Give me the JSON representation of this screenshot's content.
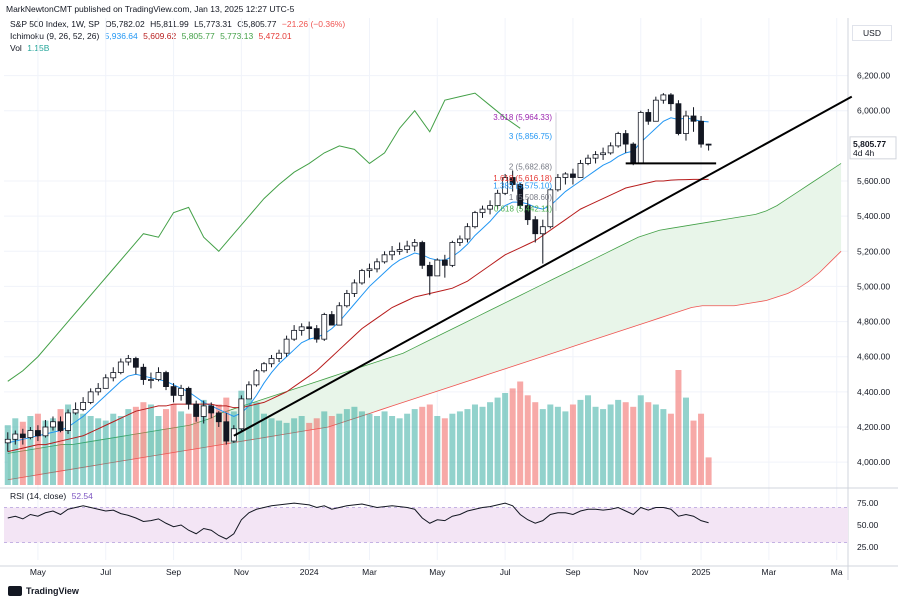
{
  "header": {
    "publisher": "MarkNewtonCMT published on TradingView.com, Jan 13, 2025 12:27 UTC-5",
    "symbol": "S&P 500 Index, 1W, SP",
    "open": "O5,782.02",
    "high": "H5,811.99",
    "low": "L5,773.31",
    "close": "C5,805.77",
    "change": "−21.26 (−0.36%)",
    "ichimoku_label": "Ichimoku (9, 26, 52, 26)",
    "ichimoku_values": [
      "5,936.64",
      "5,609.62",
      "5,805.77",
      "5,773.13",
      "5,472.01"
    ],
    "vol_label": "Vol",
    "vol_value": "1.15B",
    "rsi_label": "RSI (14, close)",
    "rsi_value": "52.54"
  },
  "currency": "USD",
  "price_badge": {
    "value": "5,805.77",
    "timer": "4d 4h"
  },
  "colors": {
    "up": "#26a69a",
    "down": "#ef5350",
    "conversion": "#2196f3",
    "base": "#b71c1c",
    "lagging": "#43a047",
    "cloud": "#e8f5e9",
    "rsi_bg": "#f3e5f5",
    "rsi_line": "#131722",
    "fib_purple": "#9c27b0",
    "fib_blue": "#2196f3",
    "fib_gray": "#787b86",
    "fib_red": "#e53935",
    "fib_green": "#4caf50"
  },
  "footer": {
    "brand": "TradingView"
  },
  "chart_data": {
    "type": "candlestick",
    "price_ticks": [
      4000,
      4200,
      4400,
      4600,
      4800,
      5000,
      5200,
      5400,
      5600,
      6000,
      6200
    ],
    "price_tick_labels": [
      "4,000.00",
      "4,200.00",
      "4,400.00",
      "4,600.00",
      "4,800.00",
      "5,000.00",
      "5,200.00",
      "5,400.00",
      "5,600.00",
      "6,000.00",
      "6,200.00"
    ],
    "ylim": [
      3870,
      6300
    ],
    "rsi_ticks": [
      25,
      50,
      75
    ],
    "rsi_tick_labels": [
      "25.00",
      "50.00",
      "75.00"
    ],
    "rsi_levels": [
      30,
      70
    ],
    "x_labels": [
      "May",
      "Jul",
      "Sep",
      "Nov",
      "2024",
      "Mar",
      "May",
      "Jul",
      "Sep",
      "Nov",
      "2025",
      "Mar",
      "Ma"
    ],
    "x_label_weeks": [
      4,
      13,
      22,
      31,
      40,
      48,
      57,
      66,
      75,
      84,
      92,
      101,
      110
    ],
    "total_weeks": 112,
    "closes": [
      4130,
      4160,
      4140,
      4180,
      4150,
      4200,
      4230,
      4180,
      4280,
      4300,
      4340,
      4400,
      4420,
      4480,
      4510,
      4570,
      4590,
      4540,
      4470,
      4470,
      4510,
      4430,
      4380,
      4420,
      4330,
      4260,
      4320,
      4280,
      4230,
      4120,
      4190,
      4360,
      4440,
      4520,
      4560,
      4590,
      4620,
      4700,
      4750,
      4770,
      4760,
      4700,
      4840,
      4780,
      4890,
      4960,
      5020,
      5090,
      5100,
      5140,
      5180,
      5200,
      5210,
      5230,
      5250,
      5120,
      5060,
      5150,
      5120,
      5250,
      5270,
      5340,
      5420,
      5440,
      5460,
      5530,
      5620,
      5580,
      5460,
      5380,
      5300,
      5340,
      5550,
      5620,
      5640,
      5620,
      5700,
      5730,
      5750,
      5760,
      5800,
      5870,
      5810,
      5700,
      5990,
      5940,
      6060,
      6090,
      6040,
      5870,
      5970,
      5940,
      5810,
      5805.77
    ],
    "highs": [
      4170,
      4180,
      4190,
      4200,
      4210,
      4240,
      4260,
      4260,
      4300,
      4340,
      4370,
      4420,
      4450,
      4500,
      4540,
      4590,
      4610,
      4600,
      4560,
      4510,
      4540,
      4520,
      4450,
      4440,
      4430,
      4350,
      4350,
      4340,
      4290,
      4280,
      4210,
      4380,
      4460,
      4530,
      4570,
      4610,
      4640,
      4720,
      4780,
      4790,
      4800,
      4780,
      4850,
      4860,
      4910,
      4980,
      5040,
      5100,
      5130,
      5160,
      5200,
      5230,
      5250,
      5260,
      5270,
      5260,
      5140,
      5160,
      5180,
      5260,
      5290,
      5360,
      5430,
      5460,
      5490,
      5550,
      5640,
      5660,
      5590,
      5500,
      5400,
      5380,
      5560,
      5640,
      5650,
      5670,
      5720,
      5750,
      5770,
      5790,
      5820,
      5880,
      5890,
      5820,
      6000,
      6010,
      6080,
      6100,
      6100,
      6060,
      6000,
      6020,
      5970,
      5811.99
    ],
    "lows": [
      4060,
      4100,
      4100,
      4130,
      4120,
      4140,
      4180,
      4170,
      4160,
      4270,
      4290,
      4330,
      4380,
      4420,
      4460,
      4500,
      4550,
      4500,
      4440,
      4420,
      4460,
      4410,
      4340,
      4350,
      4300,
      4230,
      4220,
      4250,
      4200,
      4100,
      4110,
      4180,
      4360,
      4430,
      4510,
      4540,
      4570,
      4600,
      4690,
      4720,
      4700,
      4680,
      4690,
      4780,
      4780,
      4880,
      4940,
      5010,
      5050,
      5080,
      5130,
      5150,
      5180,
      5190,
      5200,
      5100,
      4950,
      5060,
      5050,
      5110,
      5230,
      5250,
      5330,
      5390,
      5410,
      5440,
      5520,
      5540,
      5440,
      5350,
      5250,
      5130,
      5330,
      5540,
      5580,
      5580,
      5620,
      5690,
      5700,
      5720,
      5750,
      5790,
      5760,
      5690,
      5700,
      5920,
      5950,
      6040,
      6000,
      5860,
      5830,
      5880,
      5790,
      5773.31
    ],
    "tenkan": [
      4110,
      4120,
      4130,
      4140,
      4150,
      4160,
      4170,
      4180,
      4200,
      4230,
      4260,
      4300,
      4340,
      4380,
      4420,
      4460,
      4490,
      4500,
      4490,
      4480,
      4470,
      4460,
      4440,
      4420,
      4400,
      4370,
      4340,
      4320,
      4300,
      4280,
      4260,
      4280,
      4320,
      4380,
      4450,
      4510,
      4560,
      4600,
      4640,
      4680,
      4700,
      4710,
      4730,
      4760,
      4800,
      4850,
      4900,
      4950,
      5000,
      5040,
      5080,
      5120,
      5150,
      5170,
      5190,
      5180,
      5160,
      5150,
      5150,
      5170,
      5200,
      5240,
      5290,
      5330,
      5370,
      5420,
      5460,
      5480,
      5480,
      5470,
      5450,
      5440,
      5460,
      5500,
      5540,
      5570,
      5600,
      5630,
      5660,
      5690,
      5710,
      5740,
      5760,
      5770,
      5820,
      5860,
      5900,
      5940,
      5960,
      5950,
      5960,
      5950,
      5940,
      5936.64
    ],
    "kijun": [
      4060,
      4070,
      4080,
      4090,
      4100,
      4100,
      4110,
      4120,
      4130,
      4140,
      4150,
      4170,
      4190,
      4210,
      4230,
      4250,
      4270,
      4290,
      4300,
      4310,
      4320,
      4320,
      4330,
      4330,
      4330,
      4330,
      4330,
      4330,
      4320,
      4320,
      4310,
      4310,
      4320,
      4330,
      4340,
      4360,
      4380,
      4400,
      4430,
      4460,
      4490,
      4520,
      4560,
      4600,
      4640,
      4680,
      4720,
      4760,
      4790,
      4820,
      4850,
      4880,
      4900,
      4920,
      4940,
      4950,
      4960,
      4970,
      4980,
      4990,
      5010,
      5030,
      5060,
      5090,
      5120,
      5150,
      5180,
      5200,
      5220,
      5240,
      5260,
      5290,
      5320,
      5350,
      5380,
      5410,
      5440,
      5460,
      5480,
      5500,
      5520,
      5540,
      5560,
      5570,
      5580,
      5590,
      5600,
      5600,
      5605,
      5607,
      5608,
      5609,
      5609.62,
      5609.62
    ],
    "chikou_weeks": [
      0,
      2,
      4,
      6,
      8,
      10,
      12,
      14,
      16,
      18,
      20,
      22,
      24,
      26,
      28,
      30,
      32,
      34,
      36,
      38,
      40,
      42,
      44,
      46,
      48,
      50,
      52,
      54,
      56,
      58,
      60,
      62,
      64,
      66,
      68
    ],
    "chikou": [
      4460,
      4520,
      4600,
      4700,
      4800,
      4900,
      5000,
      5100,
      5200,
      5300,
      5280,
      5420,
      5450,
      5280,
      5200,
      5300,
      5400,
      5500,
      5580,
      5650,
      5700,
      5760,
      5800,
      5780,
      5700,
      5760,
      5900,
      6000,
      5880,
      6060,
      6080,
      6100,
      6030,
      5960,
      5900
    ],
    "senkou_a": [
      4050,
      4060,
      4070,
      4080,
      4090,
      4100,
      4100,
      4110,
      4120,
      4130,
      4140,
      4150,
      4160,
      4170,
      4180,
      4190,
      4200,
      4210,
      4230,
      4250,
      4280,
      4300,
      4320,
      4340,
      4360,
      4380,
      4400,
      4420,
      4440,
      4460,
      4480,
      4500,
      4520,
      4540,
      4560,
      4580,
      4600,
      4620,
      4650,
      4680,
      4710,
      4740,
      4770,
      4800,
      4830,
      4860,
      4890,
      4920,
      4950,
      4980,
      5010,
      5040,
      5070,
      5100,
      5130,
      5160,
      5190,
      5220,
      5250,
      5280,
      5300,
      5320,
      5330,
      5340,
      5350,
      5360,
      5370,
      5380,
      5390,
      5400,
      5410,
      5430,
      5460,
      5500,
      5540,
      5580,
      5620,
      5660,
      5700
    ],
    "senkou_b": [
      3900,
      3910,
      3920,
      3930,
      3940,
      3950,
      3960,
      3970,
      3980,
      3990,
      4000,
      4010,
      4020,
      4030,
      4040,
      4050,
      4060,
      4070,
      4080,
      4090,
      4100,
      4110,
      4120,
      4130,
      4140,
      4150,
      4160,
      4170,
      4180,
      4190,
      4200,
      4220,
      4240,
      4260,
      4280,
      4300,
      4320,
      4340,
      4360,
      4380,
      4400,
      4420,
      4440,
      4460,
      4480,
      4500,
      4520,
      4540,
      4560,
      4580,
      4600,
      4620,
      4640,
      4660,
      4680,
      4700,
      4720,
      4740,
      4760,
      4780,
      4800,
      4820,
      4840,
      4860,
      4880,
      4890,
      4890,
      4890,
      4890,
      4900,
      4910,
      4920,
      4940,
      4960,
      4990,
      5030,
      5080,
      5140,
      5200
    ],
    "volume": [
      0.52,
      0.58,
      0.55,
      0.6,
      0.62,
      0.56,
      0.58,
      0.66,
      0.7,
      0.64,
      0.62,
      0.6,
      0.58,
      0.56,
      0.62,
      0.6,
      0.66,
      0.68,
      0.72,
      0.7,
      0.6,
      0.66,
      0.7,
      0.64,
      0.62,
      0.68,
      0.74,
      0.66,
      0.7,
      0.76,
      0.64,
      0.82,
      0.76,
      0.72,
      0.62,
      0.58,
      0.56,
      0.54,
      0.58,
      0.6,
      0.54,
      0.58,
      0.64,
      0.6,
      0.62,
      0.66,
      0.68,
      0.64,
      0.62,
      0.6,
      0.64,
      0.6,
      0.58,
      0.62,
      0.66,
      0.68,
      0.7,
      0.6,
      0.58,
      0.62,
      0.64,
      0.66,
      0.7,
      0.68,
      0.72,
      0.76,
      0.8,
      0.84,
      0.9,
      0.78,
      0.72,
      0.66,
      0.7,
      0.68,
      0.64,
      0.7,
      0.74,
      0.78,
      0.68,
      0.66,
      0.7,
      0.74,
      0.72,
      0.68,
      0.78,
      0.72,
      0.7,
      0.66,
      0.62,
      1.0,
      0.76,
      0.56,
      0.62,
      0.24
    ],
    "rsi": [
      58,
      60,
      57,
      62,
      60,
      64,
      66,
      62,
      68,
      70,
      72,
      70,
      68,
      66,
      67,
      63,
      61,
      58,
      54,
      55,
      57,
      52,
      48,
      50,
      44,
      40,
      46,
      44,
      38,
      34,
      40,
      56,
      64,
      68,
      70,
      72,
      73,
      74,
      75,
      74,
      73,
      70,
      72,
      68,
      70,
      72,
      73,
      74,
      72,
      70,
      71,
      72,
      71,
      70,
      68,
      58,
      52,
      56,
      55,
      60,
      62,
      66,
      68,
      70,
      71,
      73,
      75,
      72,
      62,
      56,
      52,
      55,
      62,
      64,
      64,
      62,
      66,
      68,
      68,
      67,
      68,
      70,
      66,
      62,
      70,
      67,
      70,
      70,
      68,
      60,
      62,
      60,
      55,
      52.54
    ],
    "fib_levels": [
      {
        "label": "3.618 (5,964.33)",
        "value": 5964.33,
        "color": "#9c27b0"
      },
      {
        "label": "3 (5,856.75)",
        "value": 5856.75,
        "color": "#2196f3"
      },
      {
        "label": "2 (5,682.68)",
        "value": 5682.68,
        "color": "#787b86"
      },
      {
        "label": "1.618 (5,616.18)",
        "value": 5616.18,
        "color": "#e53935"
      },
      {
        "label": "1.382 (5,575.10)",
        "value": 5575.1,
        "color": "#2196f3"
      },
      {
        "label": "1 (5,508.60)",
        "value": 5508.6,
        "color": "#787b86"
      },
      {
        "label": "0.618 (5,442.11)",
        "value": 5442.11,
        "color": "#4caf50"
      }
    ],
    "trendline": {
      "from": {
        "week": 30,
        "price": 4150
      },
      "to": {
        "week": 112,
        "price": 6080
      }
    },
    "support_line": {
      "from": {
        "week": 82,
        "price": 5700
      },
      "to": {
        "week": 94,
        "price": 5700
      }
    }
  }
}
